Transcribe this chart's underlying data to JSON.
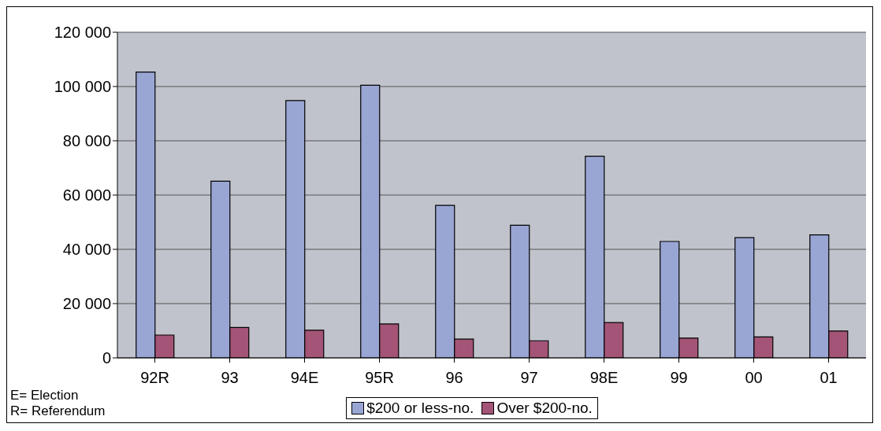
{
  "chart_data": {
    "type": "bar",
    "categories": [
      "92R",
      "93",
      "94E",
      "95R",
      "96",
      "97",
      "98E",
      "99",
      "00",
      "01"
    ],
    "series": [
      {
        "name": "$200 or less-no.",
        "color": "#99a6d4",
        "values": [
          105300,
          65100,
          94800,
          100500,
          56200,
          48900,
          74300,
          42900,
          44300,
          45300
        ]
      },
      {
        "name": "Over $200-no.",
        "color": "#a35477",
        "values": [
          8400,
          11200,
          10200,
          12500,
          6900,
          6300,
          13000,
          7300,
          7700,
          9900
        ]
      }
    ],
    "ylim": [
      0,
      120000
    ],
    "yticks": [
      {
        "value": 0,
        "label": "0"
      },
      {
        "value": 20000,
        "label": "20 000"
      },
      {
        "value": 40000,
        "label": "40 000"
      },
      {
        "value": 60000,
        "label": "60 000"
      },
      {
        "value": 80000,
        "label": "80 000"
      },
      {
        "value": 100000,
        "label": "100 000"
      },
      {
        "value": 120000,
        "label": "120 000"
      }
    ],
    "grid": "y",
    "legend": "bottom",
    "annotations": [
      "E= Election",
      "R= Referendum"
    ]
  }
}
